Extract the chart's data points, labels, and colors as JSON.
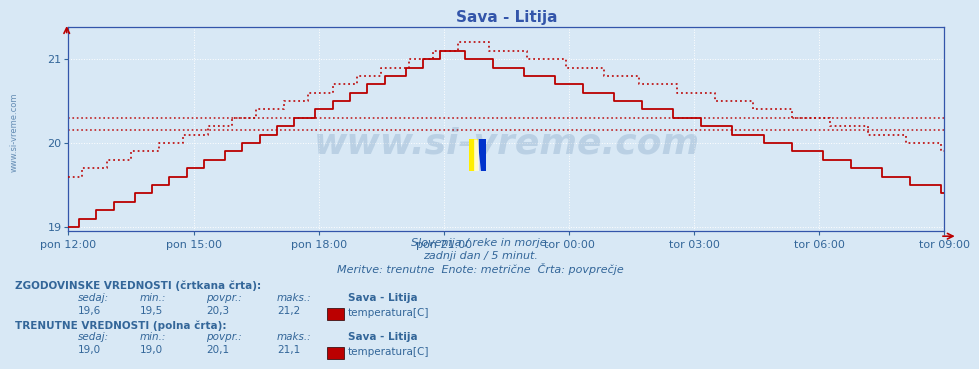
{
  "title": "Sava - Litija",
  "title_color": "#3355aa",
  "bg_color": "#d8e8f5",
  "plot_bg_color": "#d8e8f5",
  "grid_color": "#ffffff",
  "axis_color": "#3355aa",
  "tick_color": "#336699",
  "line_color": "#bb0000",
  "ylim_min": 18.95,
  "ylim_max": 21.38,
  "yticks": [
    19,
    20,
    21
  ],
  "xlabel_times": [
    "pon 12:00",
    "pon 15:00",
    "pon 18:00",
    "pon 21:00",
    "tor 00:00",
    "tor 03:00",
    "tor 06:00",
    "tor 09:00"
  ],
  "tick_positions": [
    0,
    36,
    72,
    108,
    144,
    180,
    216,
    252
  ],
  "hline_hist_avg": 20.3,
  "hline_curr_avg": 20.15,
  "subtitle1": "Slovenija / reke in morje.",
  "subtitle2": "zadnji dan / 5 minut.",
  "subtitle3": "Meritve: trenutne  Enote: metrične  Črta: povprečje",
  "legend_hist_label": "ZGODOVINSKE VREDNOSTI (črtkana črta):",
  "legend_curr_label": "TRENUTNE VREDNOSTI (polna črta):",
  "col_headers": [
    "sedaj:",
    "min.:",
    "povpr.:",
    "maks.:"
  ],
  "hist_values": [
    "19,6",
    "19,5",
    "20,3",
    "21,2"
  ],
  "curr_values": [
    "19,0",
    "19,0",
    "20,1",
    "21,1"
  ],
  "legend_station": "Sava - Litija",
  "legend_var": "temperatura[C]",
  "text_color": "#336699",
  "watermark_text": "www.si-vreme.com",
  "watermark_color": "#336699",
  "sidebar_text": "www.si-vreme.com"
}
